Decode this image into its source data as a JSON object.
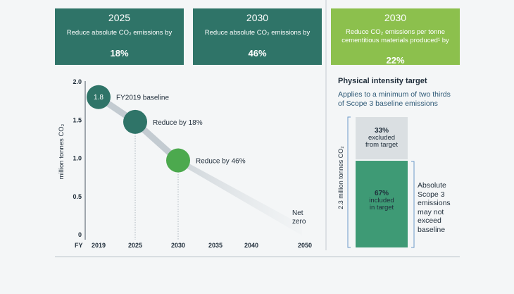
{
  "targets": [
    {
      "year": "2025",
      "text": "Reduce absolute CO₂ emissions by",
      "pct": "18%"
    },
    {
      "year": "2030",
      "text": "Reduce absolute CO₂ emissions by",
      "pct": "46%"
    },
    {
      "year": "2030",
      "text_line1": "Reduce CO₂ emissions per tonne",
      "text_line2": "cementitious materials produced¹ by",
      "pct": "22%"
    }
  ],
  "colors": {
    "teal": "#2f7468",
    "mid_green": "#3e9a75",
    "light_green": "#8cc04d",
    "gray_bar": "#dadfe2"
  },
  "chart_data": {
    "type": "line",
    "ylabel": "million tonnes CO₂",
    "xlabel_prefix": "FY",
    "x": [
      2019,
      2025,
      2030,
      2050
    ],
    "y": [
      1.8,
      1.476,
      0.972,
      0
    ],
    "xticks": [
      "2019",
      "2025",
      "2030",
      "2035",
      "2040",
      "2050"
    ],
    "yticks": [
      "2.0",
      "1.5",
      "1.0",
      "0.5",
      "0"
    ],
    "ylim": [
      0,
      2.0
    ],
    "points": [
      {
        "year": 2019,
        "value": 1.8,
        "value_label": "1.8",
        "label": "FY2019 baseline"
      },
      {
        "year": 2025,
        "value": 1.476,
        "label": "Reduce by 18%"
      },
      {
        "year": 2030,
        "value": 0.972,
        "label": "Reduce by 46%"
      }
    ],
    "end_label_line1": "Net",
    "end_label_line2": "zero"
  },
  "intensity": {
    "title": "Physical intensity target",
    "subtitle_line1": "Applies to a minimum of two thirds",
    "subtitle_line2": "of Scope 3 baseline emissions",
    "ylabel": "2.3 million tonnes CO₂",
    "excluded_pct": 33,
    "excluded_label": "33%",
    "excluded_text1": "excluded",
    "excluded_text2": "from target",
    "included_pct": 67,
    "included_label": "67%",
    "included_text1": "included",
    "included_text2": "in target",
    "side_lines": [
      "Absolute",
      "Scope 3",
      "emissions",
      "may not",
      "exceed",
      "baseline"
    ]
  }
}
